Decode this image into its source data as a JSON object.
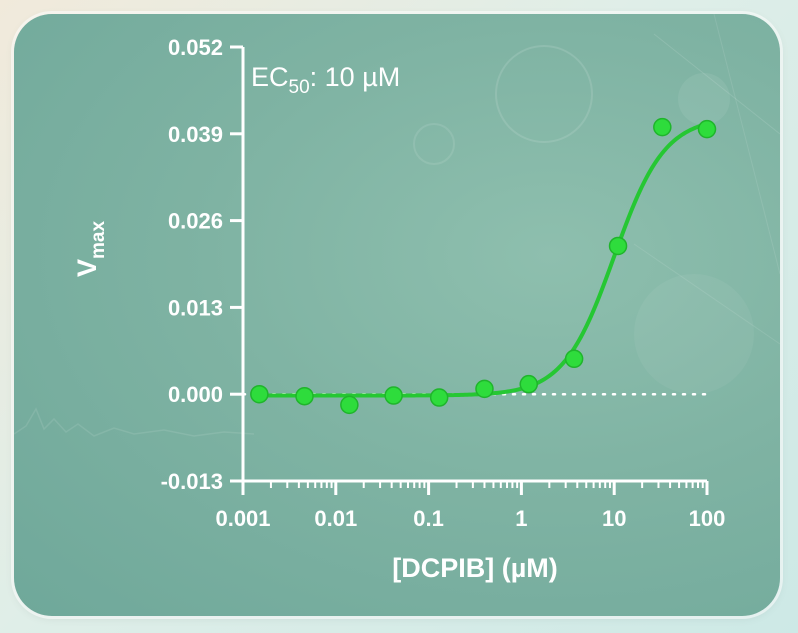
{
  "chart_data": {
    "type": "scatter",
    "xscale": "log",
    "xlabel": "[DCPIB] (µM)",
    "ylabel_main": "V",
    "ylabel_sub": "max",
    "xlim": [
      0.001,
      100
    ],
    "ylim": [
      -0.013,
      0.052
    ],
    "xticks": [
      {
        "v": 0.001,
        "label": "0.001"
      },
      {
        "v": 0.01,
        "label": "0.01"
      },
      {
        "v": 0.1,
        "label": "0.1"
      },
      {
        "v": 1,
        "label": "1"
      },
      {
        "v": 10,
        "label": "10"
      },
      {
        "v": 100,
        "label": "100"
      }
    ],
    "yticks": [
      {
        "v": 0.052,
        "label": "0.052"
      },
      {
        "v": 0.039,
        "label": "0.039"
      },
      {
        "v": 0.026,
        "label": "0.026"
      },
      {
        "v": 0.013,
        "label": "0.013"
      },
      {
        "v": 0.0,
        "label": "0.000"
      },
      {
        "v": -0.013,
        "label": "-0.013"
      }
    ],
    "annotation": {
      "prefix": "EC",
      "sub": "50",
      "suffix": ": 10 µM"
    },
    "baseline": 0,
    "series": [
      {
        "x": [
          0.0015,
          0.0046,
          0.014,
          0.042,
          0.13,
          0.4,
          1.2,
          3.7,
          11,
          33,
          100
        ],
        "y": [
          0.0,
          -0.0003,
          -0.0016,
          -0.0002,
          -0.0005,
          0.0008,
          0.0015,
          0.0053,
          0.0222,
          0.04,
          0.0397
        ]
      }
    ],
    "fit": {
      "bottom": -0.0002,
      "top": 0.0415,
      "ec50": 10,
      "hill": 1.6
    },
    "colors": {
      "points": "#2edc3c",
      "curve": "#26c733",
      "axis": "#ffffff",
      "dotted": "#ffffff"
    }
  }
}
